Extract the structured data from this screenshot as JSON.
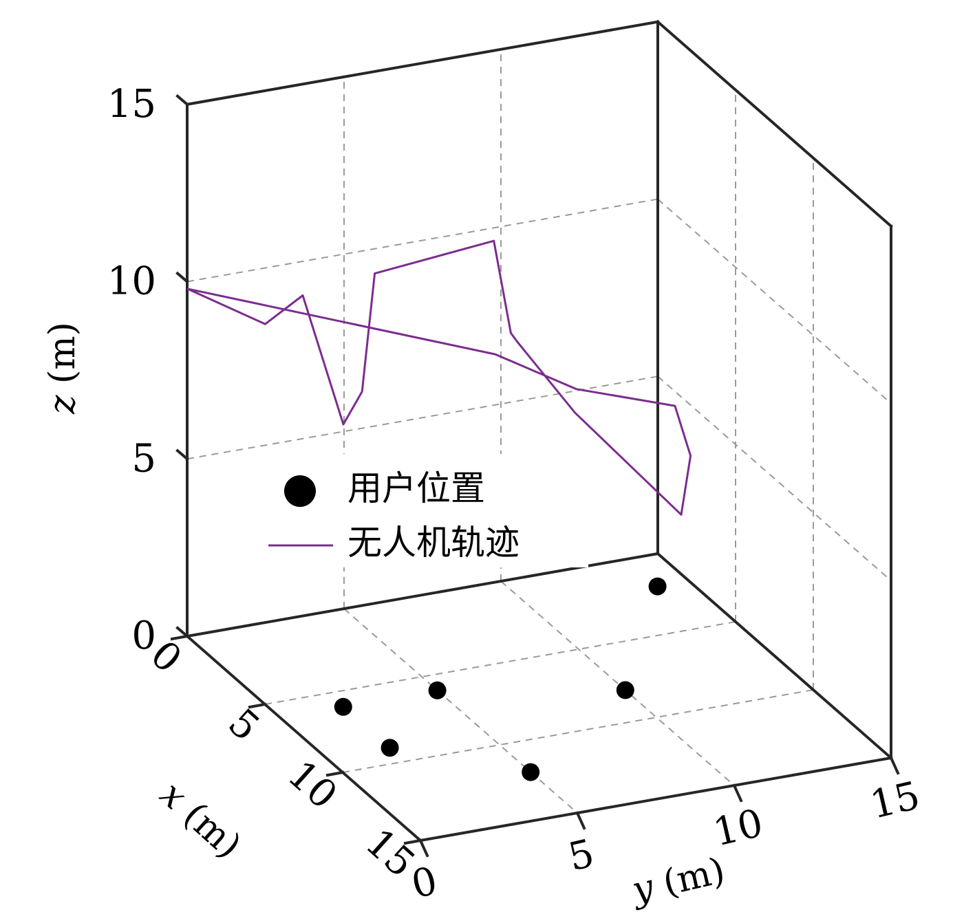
{
  "chart_data": {
    "type": "scatter3d",
    "axes": {
      "x": {
        "label_var": "x",
        "label_unit": " (m)",
        "range": [
          0,
          15
        ],
        "ticks": [
          0,
          5,
          10,
          15
        ]
      },
      "y": {
        "label_var": "y",
        "label_unit": " (m)",
        "range": [
          0,
          15
        ],
        "ticks": [
          0,
          5,
          10,
          15
        ]
      },
      "z": {
        "label_var": "z",
        "label_unit": " (m)",
        "range": [
          0,
          15
        ],
        "ticks": [
          0,
          5,
          10,
          15
        ]
      }
    },
    "grid": true,
    "legend": {
      "position": "center-left",
      "entries": [
        {
          "name": "用户位置",
          "marker": "dot",
          "color": "#000000"
        },
        {
          "name": "无人机轨迹",
          "marker": "line",
          "color": "#7b2d8e"
        }
      ]
    },
    "users": [
      {
        "x": 2,
        "y": 14,
        "z": 0
      },
      {
        "x": 8,
        "y": 10,
        "z": 0
      },
      {
        "x": 6,
        "y": 5,
        "z": 0
      },
      {
        "x": 6,
        "y": 2,
        "z": 0
      },
      {
        "x": 9,
        "y": 2,
        "z": 0
      },
      {
        "x": 12,
        "y": 5,
        "z": 0
      }
    ],
    "trajectory": [
      [
        0,
        0,
        9.8
      ],
      [
        7.1,
        6.3,
        9.7
      ],
      [
        10.1,
        7.4,
        9.7
      ],
      [
        12.4,
        9.4,
        9.8
      ],
      [
        12.8,
        9.7,
        8.5
      ],
      [
        12.4,
        9.6,
        6.7
      ],
      [
        10.0,
        7.4,
        9.0
      ],
      [
        8.5,
        6.3,
        10.6
      ],
      [
        7.7,
        6.5,
        10.5
      ],
      [
        6.0,
        6.8,
        12.4
      ],
      [
        5.2,
        3.4,
        11.7
      ],
      [
        6.0,
        2.6,
        8.8
      ],
      [
        5.2,
        2.4,
        7.6
      ],
      [
        3.6,
        1.9,
        10.7
      ],
      [
        3.0,
        1.0,
        9.8
      ],
      [
        0,
        0,
        9.8
      ]
    ]
  }
}
